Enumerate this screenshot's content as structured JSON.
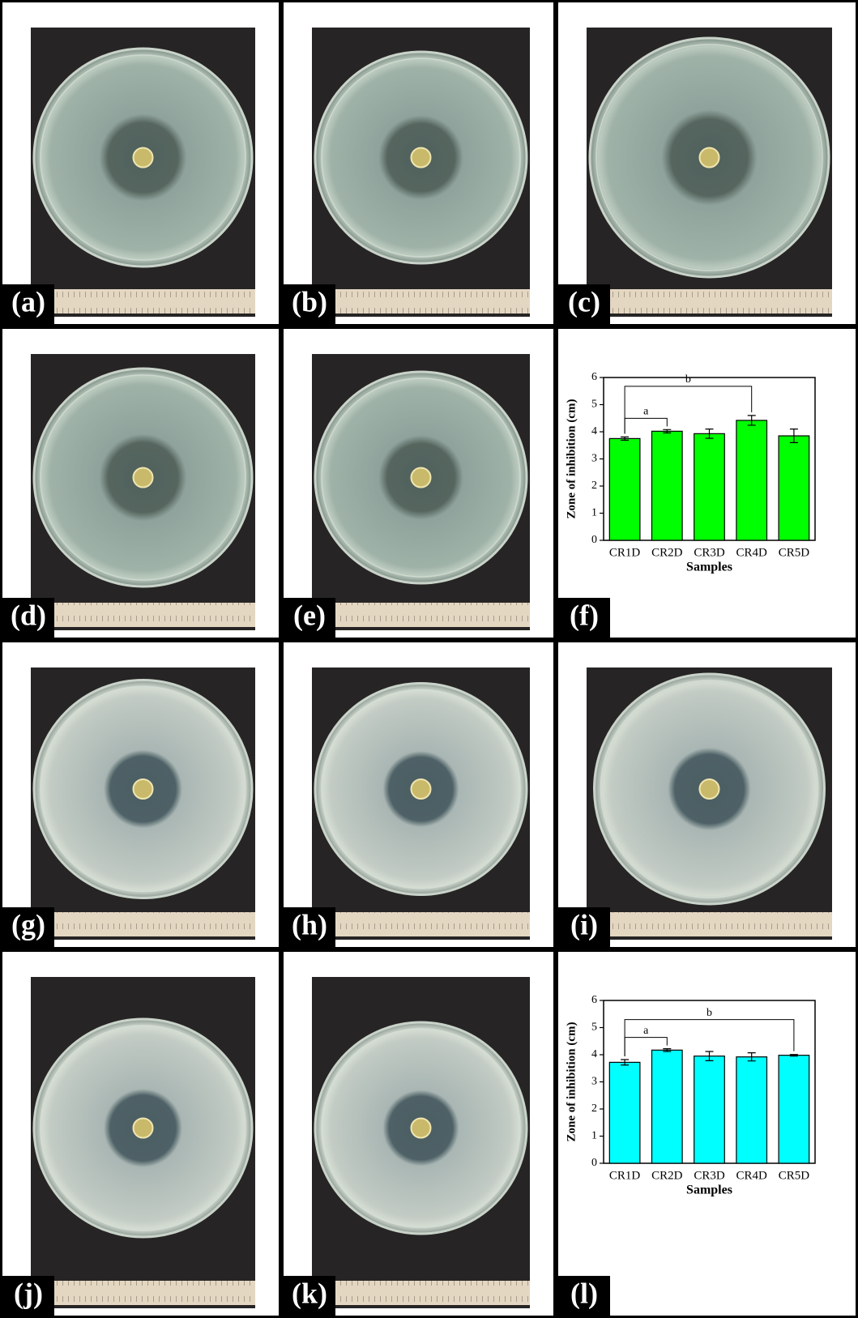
{
  "panels": [
    "(a)",
    "(b)",
    "(c)",
    "(d)",
    "(e)",
    "(f)",
    "(g)",
    "(h)",
    "(i)",
    "(j)",
    "(k)",
    "(l)"
  ],
  "chart_data": [
    {
      "type": "bar",
      "categories": [
        "CR1D",
        "CR2D",
        "CR3D",
        "CR4D",
        "CR5D"
      ],
      "values": [
        3.75,
        4.02,
        3.93,
        4.42,
        3.85
      ],
      "errors": [
        0.06,
        0.06,
        0.17,
        0.18,
        0.25
      ],
      "color": "#00ff00",
      "ylim": [
        0,
        6
      ],
      "yticks": [
        0,
        1,
        2,
        3,
        4,
        5,
        6
      ],
      "x_label": "Samples",
      "y_label": "Zone of inhibition (cm)",
      "annotations": [
        {
          "text": "a",
          "between": [
            "CR1D",
            "CR2D"
          ]
        },
        {
          "text": "b",
          "between": [
            "CR1D",
            "CR4D"
          ]
        }
      ]
    },
    {
      "type": "bar",
      "categories": [
        "CR1D",
        "CR2D",
        "CR3D",
        "CR4D",
        "CR5D"
      ],
      "values": [
        3.72,
        4.17,
        3.95,
        3.92,
        3.98
      ],
      "errors": [
        0.1,
        0.05,
        0.17,
        0.15,
        0.03
      ],
      "color": "#00ffff",
      "ylim": [
        0,
        6
      ],
      "yticks": [
        0,
        1,
        2,
        3,
        4,
        5,
        6
      ],
      "x_label": "Samples",
      "y_label": "Zone of inhibition (cm)",
      "annotations": [
        {
          "text": "a",
          "between": [
            "CR1D",
            "CR2D"
          ]
        },
        {
          "text": "b",
          "between": [
            "CR1D",
            "CR5D"
          ]
        }
      ]
    }
  ]
}
